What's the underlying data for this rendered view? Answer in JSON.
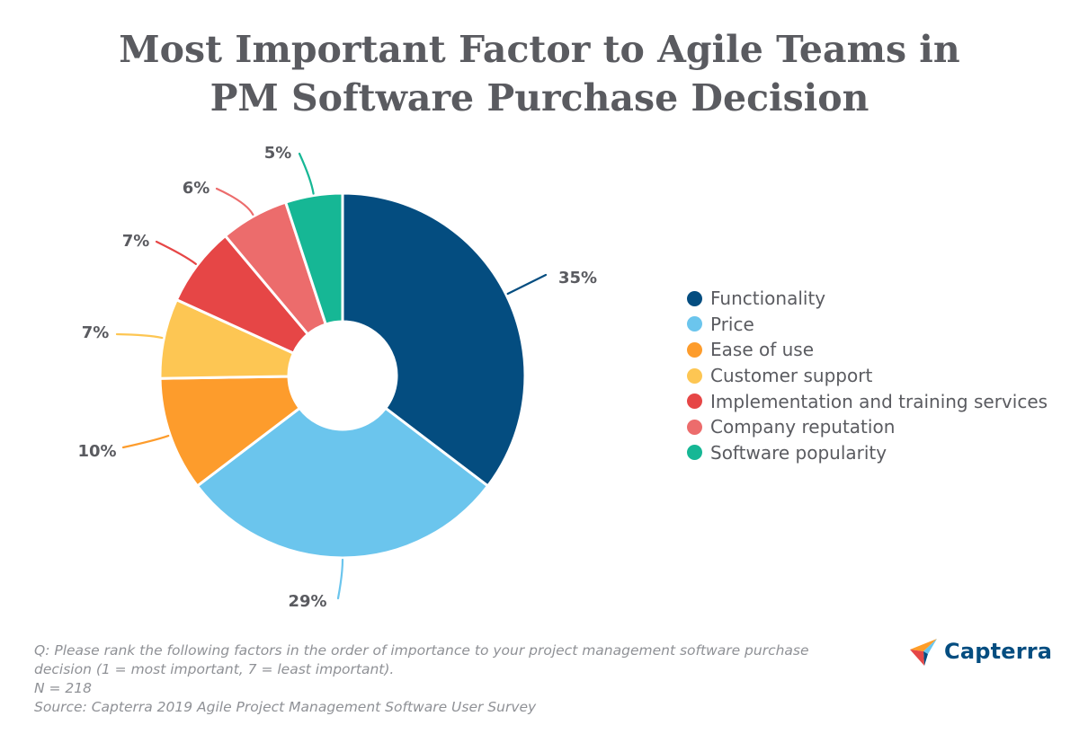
{
  "title": {
    "line1": "Most Important Factor to Agile Teams in",
    "line2": "PM Software Purchase Decision"
  },
  "chart_data": {
    "type": "pie",
    "title": "Most Important Factor to Agile Teams in PM Software Purchase Decision",
    "donut": true,
    "legend_position": "right",
    "categories": [
      "Functionality",
      "Price",
      "Ease of use",
      "Customer support",
      "Implementation and training services",
      "Company reputation",
      "Software popularity"
    ],
    "values": [
      35,
      29,
      10,
      7,
      7,
      6,
      5
    ],
    "data_labels": [
      "35%",
      "29%",
      "10%",
      "7%",
      "7%",
      "6%",
      "5%"
    ],
    "colors": [
      "#044d80",
      "#6bc5ed",
      "#fd9c2c",
      "#fdc653",
      "#e64646",
      "#ec6c6c",
      "#16b795"
    ]
  },
  "footnote": {
    "line1": "Q: Please rank the following factors in the order of importance to your project management software purchase",
    "line2": "decision (1 = most important, 7 = least important).",
    "line3": "N = 218",
    "line4": "Source: Capterra 2019 Agile Project Management Software User Survey"
  },
  "logo": {
    "text": "Capterra",
    "icon": "capterra-arrow-icon"
  }
}
